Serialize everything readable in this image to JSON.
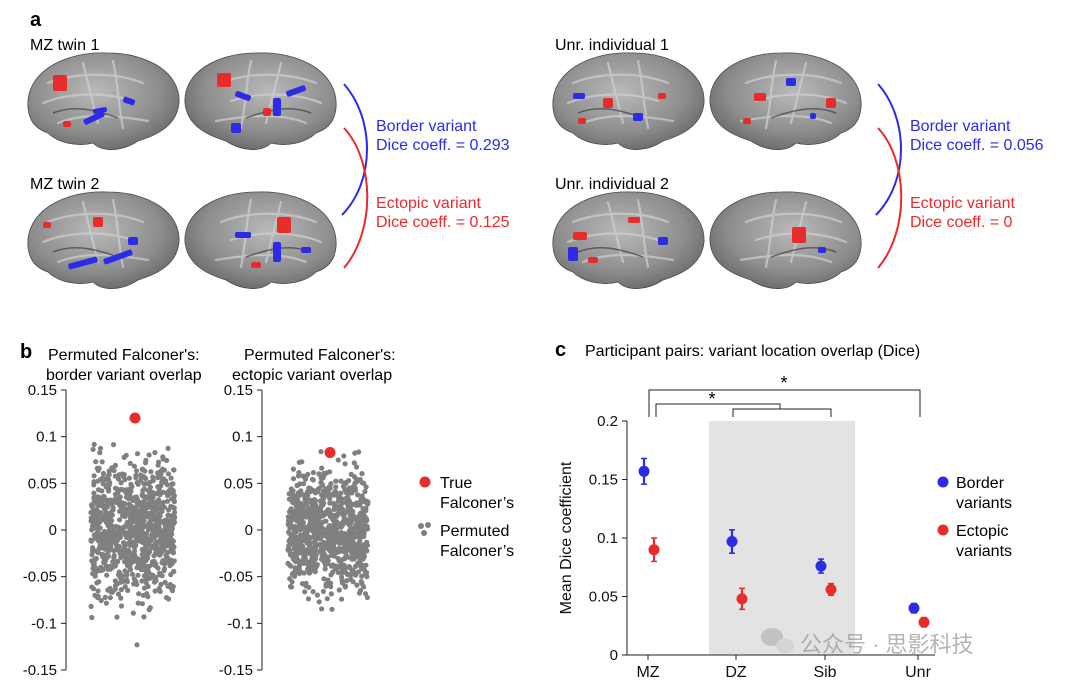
{
  "panel_a": {
    "label": "a",
    "left_group": {
      "top_label": "MZ twin 1",
      "bottom_label": "MZ twin 2",
      "border_title": "Border variant",
      "border_dice": "Dice coeff. = 0.293",
      "ectopic_title": "Ectopic variant",
      "ectopic_dice": "Dice coeff. = 0.125"
    },
    "right_group": {
      "top_label": "Unr. individual 1",
      "bottom_label": "Unr. individual 2",
      "border_title": "Border variant",
      "border_dice": "Dice coeff. = 0.056",
      "ectopic_title": "Ectopic variant",
      "ectopic_dice": "Dice coeff. = 0"
    }
  },
  "panel_b": {
    "label": "b",
    "title_left_1": "Permuted Falconer's:",
    "title_left_2": "border variant overlap",
    "title_right_1": "Permuted Falconer's:",
    "title_right_2": "ectopic variant overlap",
    "legend_true_1": "True",
    "legend_true_2": "Falconer’s",
    "legend_perm_1": "Permuted",
    "legend_perm_2": "Falconer’s"
  },
  "panel_c": {
    "label": "c",
    "title": "Participant pairs: variant location overlap (Dice)",
    "sig_marker": "*",
    "legend_border_1": "Border",
    "legend_border_2": "variants",
    "legend_ectopic_1": "Ectopic",
    "legend_ectopic_2": "variants"
  },
  "watermark": "公众号 · 思影科技",
  "colors": {
    "border": "#2b2be8",
    "ectopic": "#e82b2b",
    "permuted": "#808080",
    "shade": "#e3e3e3",
    "brain": "#8a8a8a"
  },
  "chart_data": [
    {
      "type": "scatter",
      "id": "b-left",
      "title": "Permuted Falconer's: border variant overlap",
      "ylim": [
        -0.15,
        0.15
      ],
      "yticks": [
        "0.15",
        "0.1",
        "0.05",
        "0",
        "-0.05",
        "-0.1",
        "-0.15"
      ],
      "true_value": 0.12,
      "permuted_range": [
        -0.123,
        0.092
      ],
      "permuted_count": "many (approx. 1000 permutations)"
    },
    {
      "type": "scatter",
      "id": "b-right",
      "title": "Permuted Falconer's: ectopic variant overlap",
      "ylim": [
        -0.15,
        0.15
      ],
      "yticks": [
        "0.15",
        "0.1",
        "0.05",
        "0",
        "-0.05",
        "-0.1",
        "-0.15"
      ],
      "true_value": 0.083,
      "permuted_range": [
        -0.085,
        0.085
      ],
      "permuted_count": "many (approx. 1000 permutations)"
    },
    {
      "type": "scatter",
      "id": "c",
      "title": "Participant pairs: variant location overlap (Dice)",
      "ylabel": "Mean Dice coefficient",
      "ylim": [
        0,
        0.2
      ],
      "yticks": [
        "0",
        "0.05",
        "0.1",
        "0.15",
        "0.2"
      ],
      "categories": [
        "MZ",
        "DZ",
        "Sib",
        "Unr"
      ],
      "shaded_categories": [
        "DZ",
        "Sib"
      ],
      "series": [
        {
          "name": "Border variants",
          "values": [
            0.157,
            0.097,
            0.076,
            0.04
          ],
          "errors": [
            0.011,
            0.01,
            0.006,
            0.004
          ]
        },
        {
          "name": "Ectopic variants",
          "values": [
            0.09,
            0.048,
            0.056,
            0.028
          ],
          "errors": [
            0.01,
            0.009,
            0.005,
            0.004
          ]
        }
      ]
    }
  ]
}
